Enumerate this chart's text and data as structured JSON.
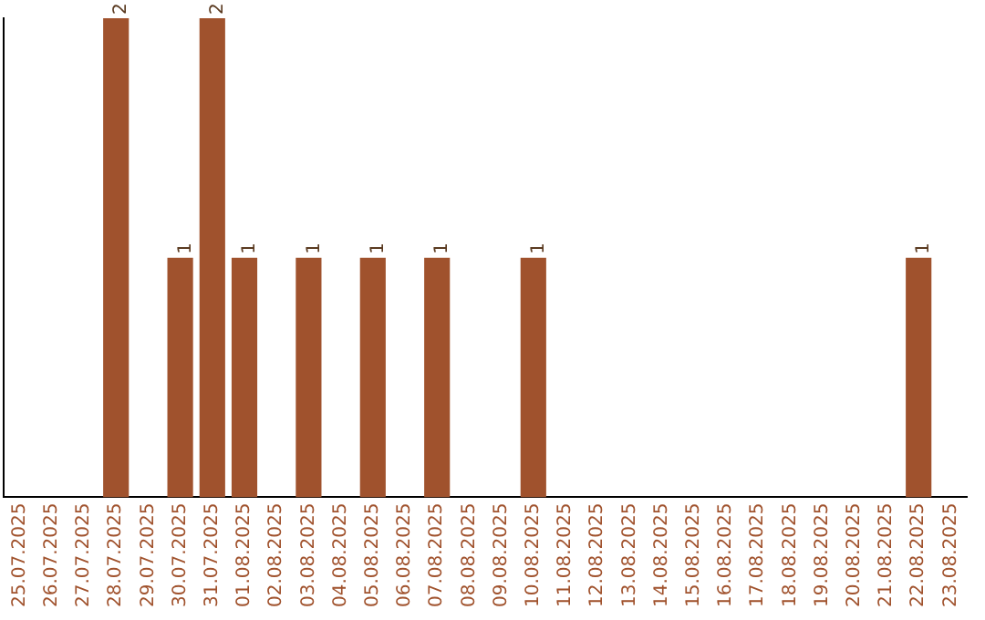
{
  "chart_data": {
    "type": "bar",
    "categories": [
      "25.07.2025",
      "26.07.2025",
      "27.07.2025",
      "28.07.2025",
      "29.07.2025",
      "30.07.2025",
      "31.07.2025",
      "01.08.2025",
      "02.08.2025",
      "03.08.2025",
      "04.08.2025",
      "05.08.2025",
      "06.08.2025",
      "07.08.2025",
      "08.08.2025",
      "09.08.2025",
      "10.08.2025",
      "11.08.2025",
      "12.08.2025",
      "13.08.2025",
      "14.08.2025",
      "15.08.2025",
      "16.08.2025",
      "17.08.2025",
      "18.08.2025",
      "19.08.2025",
      "20.08.2025",
      "21.08.2025",
      "22.08.2025",
      "23.08.2025"
    ],
    "values": [
      0,
      0,
      0,
      2,
      0,
      1,
      2,
      1,
      0,
      1,
      0,
      1,
      0,
      1,
      0,
      0,
      1,
      0,
      0,
      0,
      0,
      0,
      0,
      0,
      0,
      0,
      0,
      0,
      1,
      0
    ],
    "value_labels": [
      null,
      null,
      null,
      "2",
      null,
      "1",
      "2",
      "1",
      null,
      "1",
      null,
      "1",
      null,
      "1",
      null,
      null,
      "1",
      null,
      null,
      null,
      null,
      null,
      null,
      null,
      null,
      null,
      null,
      null,
      "1",
      null
    ],
    "color": "#a0522d",
    "grid": false,
    "legend": false,
    "tick_labels": "x"
  }
}
